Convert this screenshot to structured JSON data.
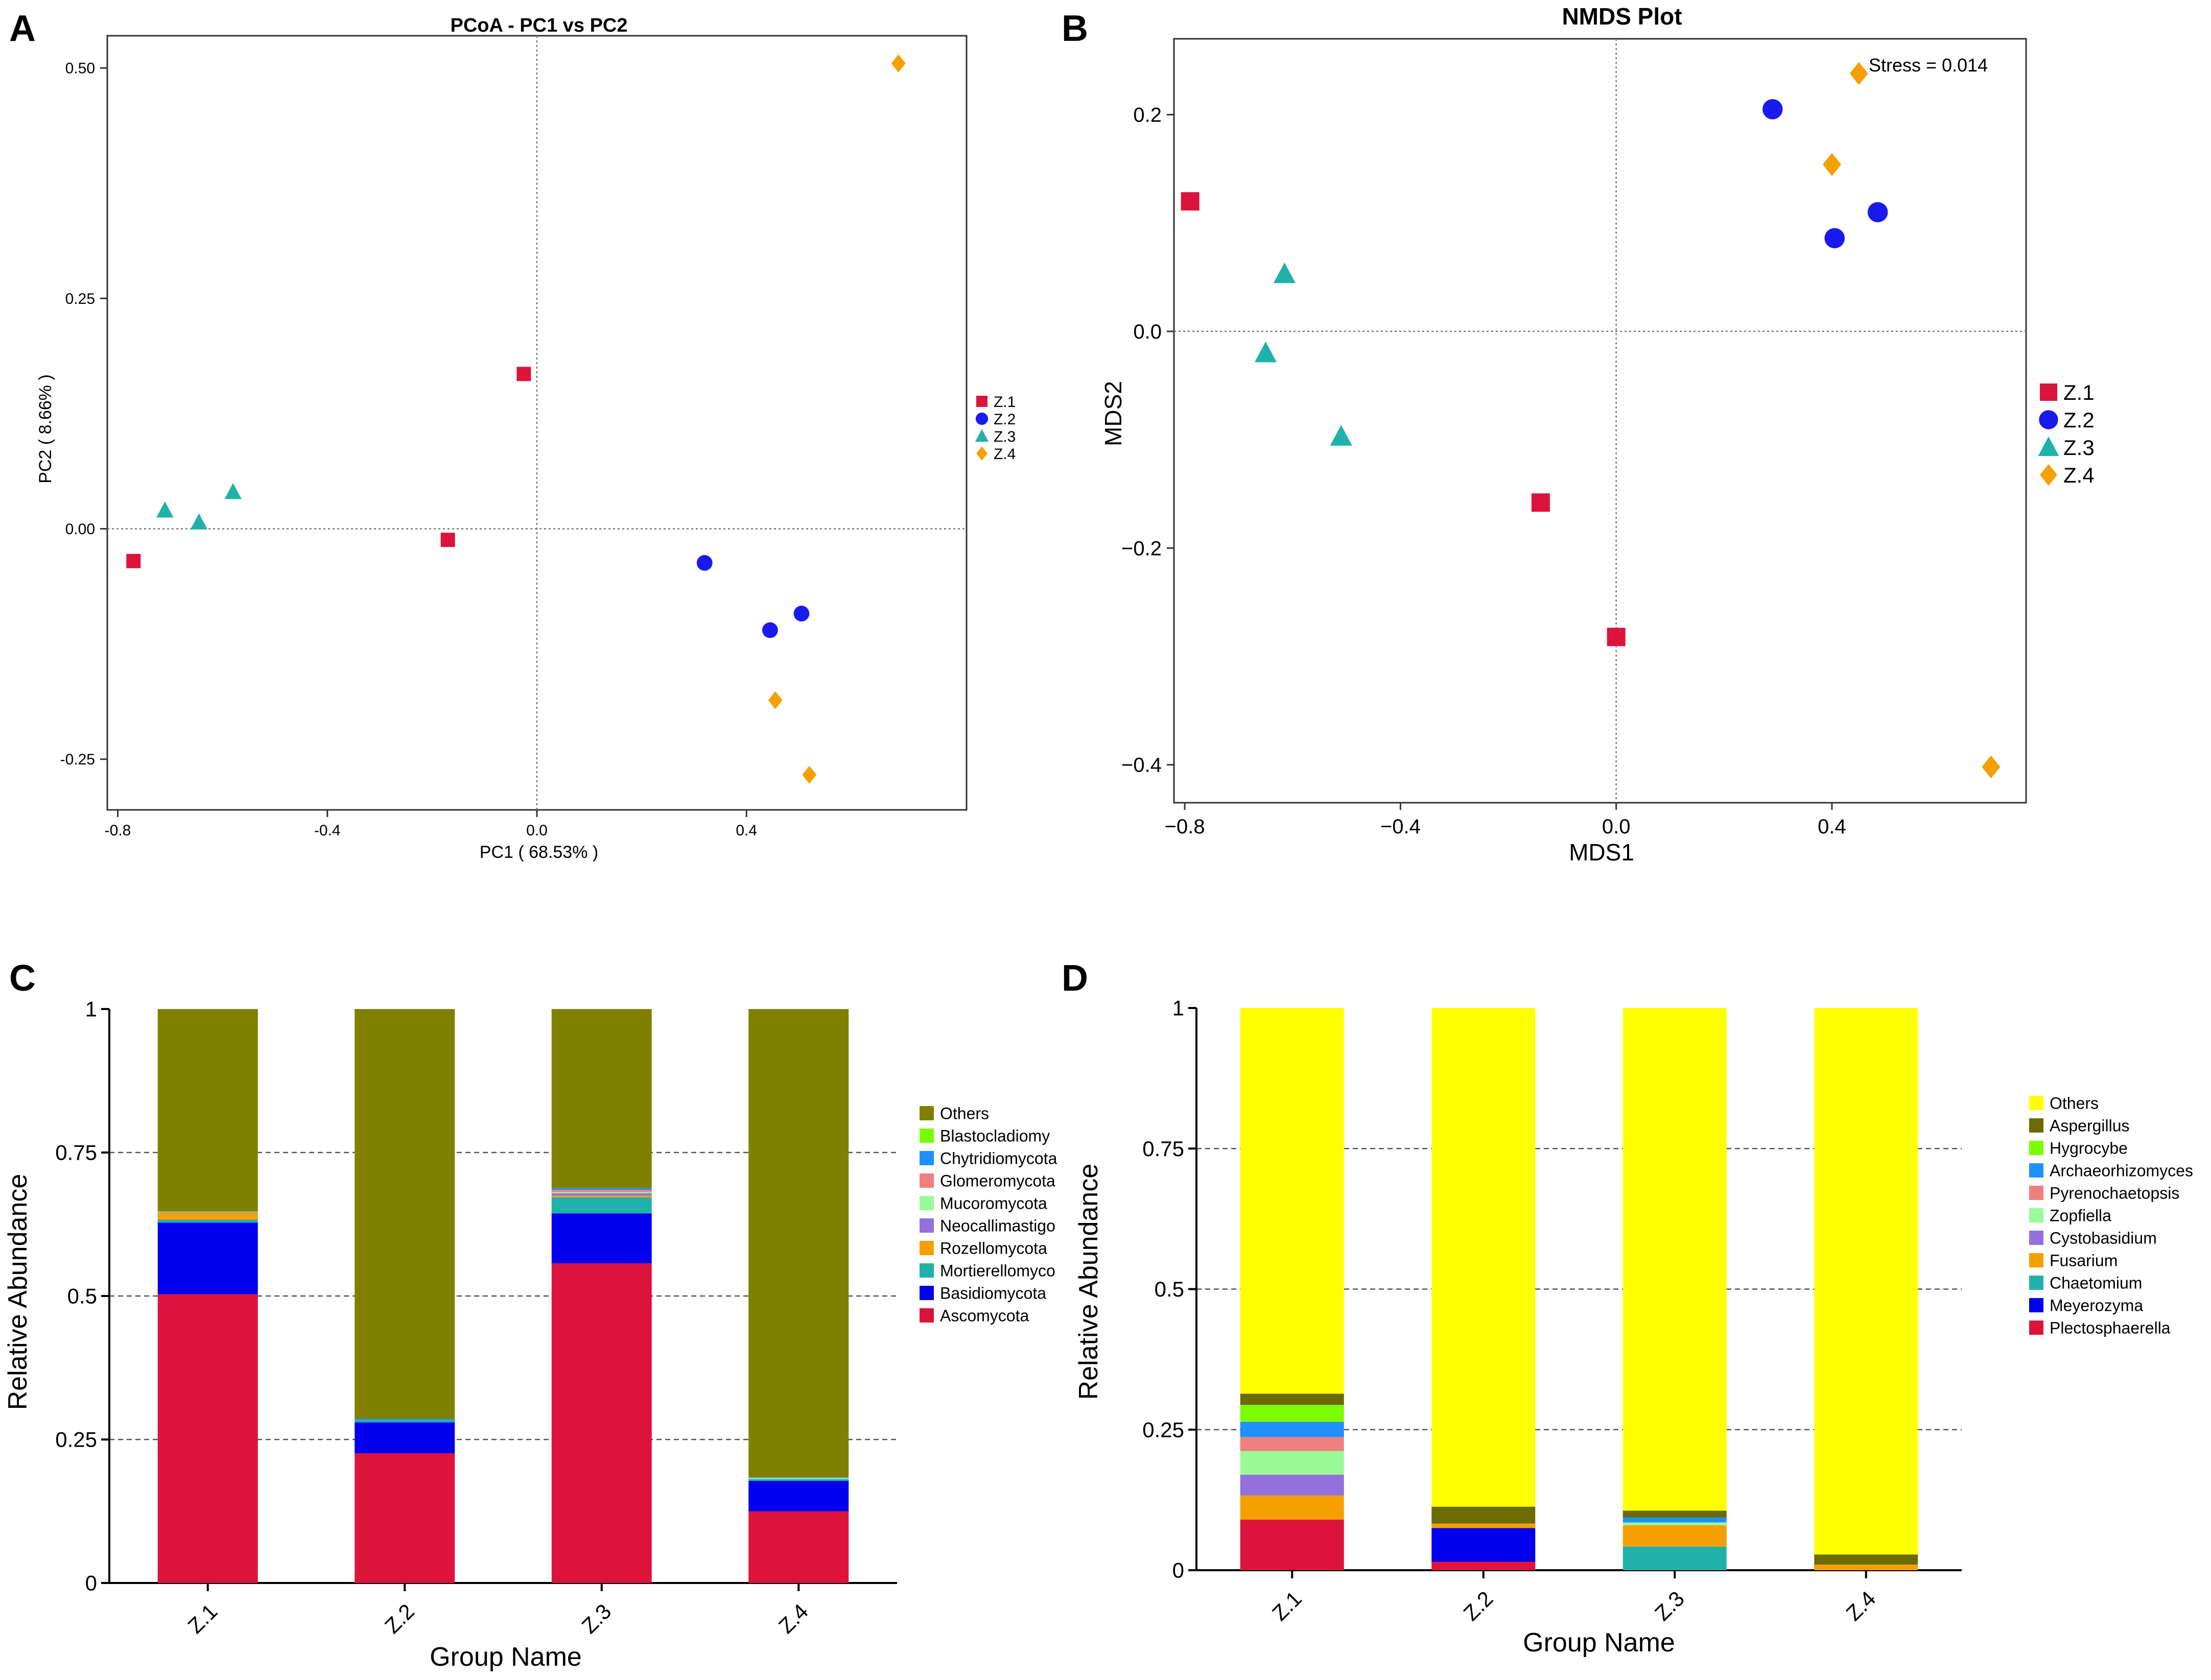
{
  "panels": {
    "a": {
      "letter": "A",
      "title": "PCoA - PC1 vs PC2",
      "xlabel": "PC1 ( 68.53% )",
      "ylabel": "PC2 ( 8.66% )"
    },
    "b": {
      "letter": "B",
      "title": "NMDS Plot",
      "xlabel": "MDS1",
      "ylabel": "MDS2",
      "annotation": "Stress = 0.014"
    },
    "c": {
      "letter": "C",
      "xlabel": "Group Name",
      "ylabel": "Relative Abundance"
    },
    "d": {
      "letter": "D",
      "xlabel": "Group Name",
      "ylabel": "Relative Abundance"
    }
  },
  "chart_data": [
    {
      "id": "A",
      "type": "scatter",
      "title": "PCoA - PC1 vs PC2",
      "xlabel": "PC1 ( 68.53% )",
      "ylabel": "PC2 ( 8.66% )",
      "xlim": [
        -0.82,
        0.82
      ],
      "ylim": [
        -0.305,
        0.535
      ],
      "xticks": [
        -0.8,
        -0.4,
        0.0,
        0.4
      ],
      "xtick_labels": [
        "-0.8",
        "-0.4",
        "0.0",
        "0.4"
      ],
      "yticks": [
        -0.25,
        0.0,
        0.25,
        0.5
      ],
      "ytick_labels": [
        "-0.25",
        "0.00",
        "0.25",
        "0.50"
      ],
      "reference_lines": {
        "x": 0,
        "y": 0
      },
      "legend_position": "right",
      "series": [
        {
          "name": "Z.1",
          "color": "#dc143c",
          "marker": "square",
          "points": [
            [
              -0.77,
              -0.035
            ],
            [
              -0.17,
              -0.012
            ],
            [
              -0.025,
              0.168
            ]
          ]
        },
        {
          "name": "Z.2",
          "color": "#1a1aee",
          "marker": "circle",
          "points": [
            [
              0.32,
              -0.037
            ],
            [
              0.445,
              -0.11
            ],
            [
              0.505,
              -0.092
            ]
          ]
        },
        {
          "name": "Z.3",
          "color": "#20b2aa",
          "marker": "triangle",
          "points": [
            [
              -0.71,
              0.02
            ],
            [
              -0.645,
              0.007
            ],
            [
              -0.58,
              0.04
            ]
          ]
        },
        {
          "name": "Z.4",
          "color": "#f5a000",
          "marker": "diamond",
          "points": [
            [
              0.69,
              0.505
            ],
            [
              0.455,
              -0.186
            ],
            [
              0.52,
              -0.267
            ]
          ]
        }
      ]
    },
    {
      "id": "B",
      "type": "scatter",
      "title": "NMDS Plot",
      "xlabel": "MDS1",
      "ylabel": "MDS2",
      "annotation": "Stress = 0.014",
      "xlim": [
        -0.82,
        0.76
      ],
      "ylim": [
        -0.435,
        0.27
      ],
      "xticks": [
        -0.8,
        -0.4,
        0.0,
        0.4
      ],
      "xtick_labels": [
        "−0.8",
        "−0.4",
        "0.0",
        "0.4"
      ],
      "yticks": [
        -0.4,
        -0.2,
        0.0,
        0.2
      ],
      "ytick_labels": [
        "−0.4",
        "−0.2",
        "0.0",
        "0.2"
      ],
      "reference_lines": {
        "x": 0,
        "y": 0
      },
      "legend_position": "right",
      "series": [
        {
          "name": "Z.1",
          "color": "#dc143c",
          "marker": "square",
          "points": [
            [
              -0.79,
              0.12
            ],
            [
              -0.14,
              -0.158
            ],
            [
              0.0,
              -0.282
            ]
          ]
        },
        {
          "name": "Z.2",
          "color": "#1a1aee",
          "marker": "circle",
          "points": [
            [
              0.29,
              0.205
            ],
            [
              0.405,
              0.086
            ],
            [
              0.485,
              0.11
            ]
          ]
        },
        {
          "name": "Z.3",
          "color": "#20b2aa",
          "marker": "triangle",
          "points": [
            [
              -0.615,
              0.053
            ],
            [
              -0.65,
              -0.02
            ],
            [
              -0.51,
              -0.097
            ]
          ]
        },
        {
          "name": "Z.4",
          "color": "#f5a000",
          "marker": "diamond",
          "points": [
            [
              0.45,
              0.238
            ],
            [
              0.4,
              0.154
            ],
            [
              0.695,
              -0.402
            ]
          ]
        }
      ]
    },
    {
      "id": "C",
      "type": "bar",
      "stacked": true,
      "xlabel": "Group Name",
      "ylabel": "Relative Abundance",
      "ylim": [
        0,
        1
      ],
      "yticks": [
        0,
        0.25,
        0.5,
        0.75,
        1
      ],
      "ytick_labels": [
        "0",
        "0.25",
        "0.5",
        "0.75",
        "1"
      ],
      "gridlines": [
        0.25,
        0.5,
        0.75
      ],
      "categories": [
        "Z.1",
        "Z.2",
        "Z.3",
        "Z.4"
      ],
      "legend_position": "right",
      "legend_order": [
        "Others",
        "Blastocladiomy",
        "Chytridiomycota",
        "Glomeromycota",
        "Mucoromycota",
        "Neocallimastigo",
        "Rozellomycota",
        "Mortierellomyco",
        "Basidiomycota",
        "Ascomycota"
      ],
      "series": [
        {
          "name": "Ascomycota",
          "color": "#dc143c",
          "values": [
            0.503,
            0.226,
            0.557,
            0.125
          ]
        },
        {
          "name": "Basidiomycota",
          "color": "#0000ee",
          "values": [
            0.125,
            0.054,
            0.087,
            0.053
          ]
        },
        {
          "name": "Mortierellomyco",
          "color": "#20b2aa",
          "values": [
            0.005,
            0.004,
            0.028,
            0.003
          ]
        },
        {
          "name": "Rozellomycota",
          "color": "#f5a000",
          "values": [
            0.012,
            0.0,
            0.003,
            0.0
          ]
        },
        {
          "name": "Neocallimastigo",
          "color": "#9370db",
          "values": [
            0.001,
            0.0,
            0.004,
            0.0
          ]
        },
        {
          "name": "Mucoromycota",
          "color": "#98fb98",
          "values": [
            0.001,
            0.0,
            0.002,
            0.002
          ]
        },
        {
          "name": "Glomeromycota",
          "color": "#f08080",
          "values": [
            0.0,
            0.0,
            0.004,
            0.0
          ]
        },
        {
          "name": "Chytridiomycota",
          "color": "#1e90ff",
          "values": [
            0.0,
            0.002,
            0.003,
            0.001
          ]
        },
        {
          "name": "Blastocladiomy",
          "color": "#7cfc00",
          "values": [
            0.0,
            0.0,
            0.0,
            0.0
          ]
        },
        {
          "name": "Others",
          "color": "#808000",
          "values": [
            0.353,
            0.714,
            0.312,
            0.816
          ]
        }
      ]
    },
    {
      "id": "D",
      "type": "bar",
      "stacked": true,
      "xlabel": "Group Name",
      "ylabel": "Relative Abundance",
      "ylim": [
        0,
        1
      ],
      "yticks": [
        0,
        0.25,
        0.5,
        0.75,
        1
      ],
      "ytick_labels": [
        "0",
        "0.25",
        "0.5",
        "0.75",
        "1"
      ],
      "gridlines": [
        0.25,
        0.5,
        0.75
      ],
      "categories": [
        "Z.1",
        "Z.2",
        "Z.3",
        "Z.4"
      ],
      "legend_position": "right",
      "legend_order": [
        "Others",
        "Aspergillus",
        "Hygrocybe",
        "Archaeorhizomyces",
        "Pyrenochaetopsis",
        "Zopfiella",
        "Cystobasidium",
        "Fusarium",
        "Chaetomium",
        "Meyerozyma",
        "Plectosphaerella"
      ],
      "series": [
        {
          "name": "Plectosphaerella",
          "color": "#dc143c",
          "values": [
            0.09,
            0.015,
            0.0,
            0.0
          ]
        },
        {
          "name": "Meyerozyma",
          "color": "#0000ee",
          "values": [
            0.0,
            0.06,
            0.0,
            0.0
          ]
        },
        {
          "name": "Chaetomium",
          "color": "#20b2aa",
          "values": [
            0.0,
            0.0,
            0.042,
            0.0
          ]
        },
        {
          "name": "Fusarium",
          "color": "#f5a000",
          "values": [
            0.043,
            0.008,
            0.038,
            0.01
          ]
        },
        {
          "name": "Cystobasidium",
          "color": "#9370db",
          "values": [
            0.037,
            0.0,
            0.0,
            0.0
          ]
        },
        {
          "name": "Zopfiella",
          "color": "#98fb98",
          "values": [
            0.042,
            0.0,
            0.005,
            0.0
          ]
        },
        {
          "name": "Pyrenochaetopsis",
          "color": "#f08080",
          "values": [
            0.025,
            0.0,
            0.0,
            0.0
          ]
        },
        {
          "name": "Archaeorhizomyces",
          "color": "#1e90ff",
          "values": [
            0.027,
            0.0,
            0.009,
            0.0
          ]
        },
        {
          "name": "Hygrocybe",
          "color": "#7cfc00",
          "values": [
            0.03,
            0.0,
            0.0,
            0.0
          ]
        },
        {
          "name": "Aspergillus",
          "color": "#6b6b00",
          "values": [
            0.02,
            0.03,
            0.012,
            0.018
          ]
        },
        {
          "name": "Others",
          "color": "#ffff00",
          "values": [
            0.686,
            0.887,
            0.894,
            0.972
          ]
        }
      ]
    }
  ]
}
